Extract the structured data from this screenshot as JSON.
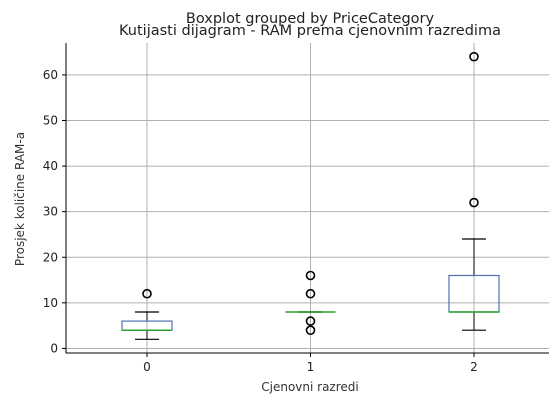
{
  "chart_data": {
    "type": "boxplot",
    "suptitle": "Boxplot grouped by PriceCategory",
    "title": "Kutijasti dijagram - RAM prema cjenovnim razredima",
    "xlabel": "Cjenovni razredi",
    "ylabel": "Prosjek količine RAM-a",
    "categories": [
      "0",
      "1",
      "2"
    ],
    "ylim": [
      -1,
      67
    ],
    "yticks": [
      0,
      10,
      20,
      30,
      40,
      50,
      60
    ],
    "grid": true,
    "colors": {
      "box": "#4c72b0",
      "median": "#2ca02c",
      "whisker": "#000000",
      "outlier": "#000000",
      "grid": "#b0b0b0"
    },
    "boxes": [
      {
        "category": "0",
        "whislo": 2,
        "q1": 4,
        "med": 4,
        "q3": 6,
        "whishi": 8,
        "fliers": [
          12
        ]
      },
      {
        "category": "1",
        "whislo": 8,
        "q1": 8,
        "med": 8,
        "q3": 8,
        "whishi": 8,
        "fliers": [
          4,
          6,
          12,
          16
        ]
      },
      {
        "category": "2",
        "whislo": 4,
        "q1": 8,
        "med": 8,
        "q3": 16,
        "whishi": 24,
        "fliers": [
          32,
          64
        ]
      }
    ]
  }
}
